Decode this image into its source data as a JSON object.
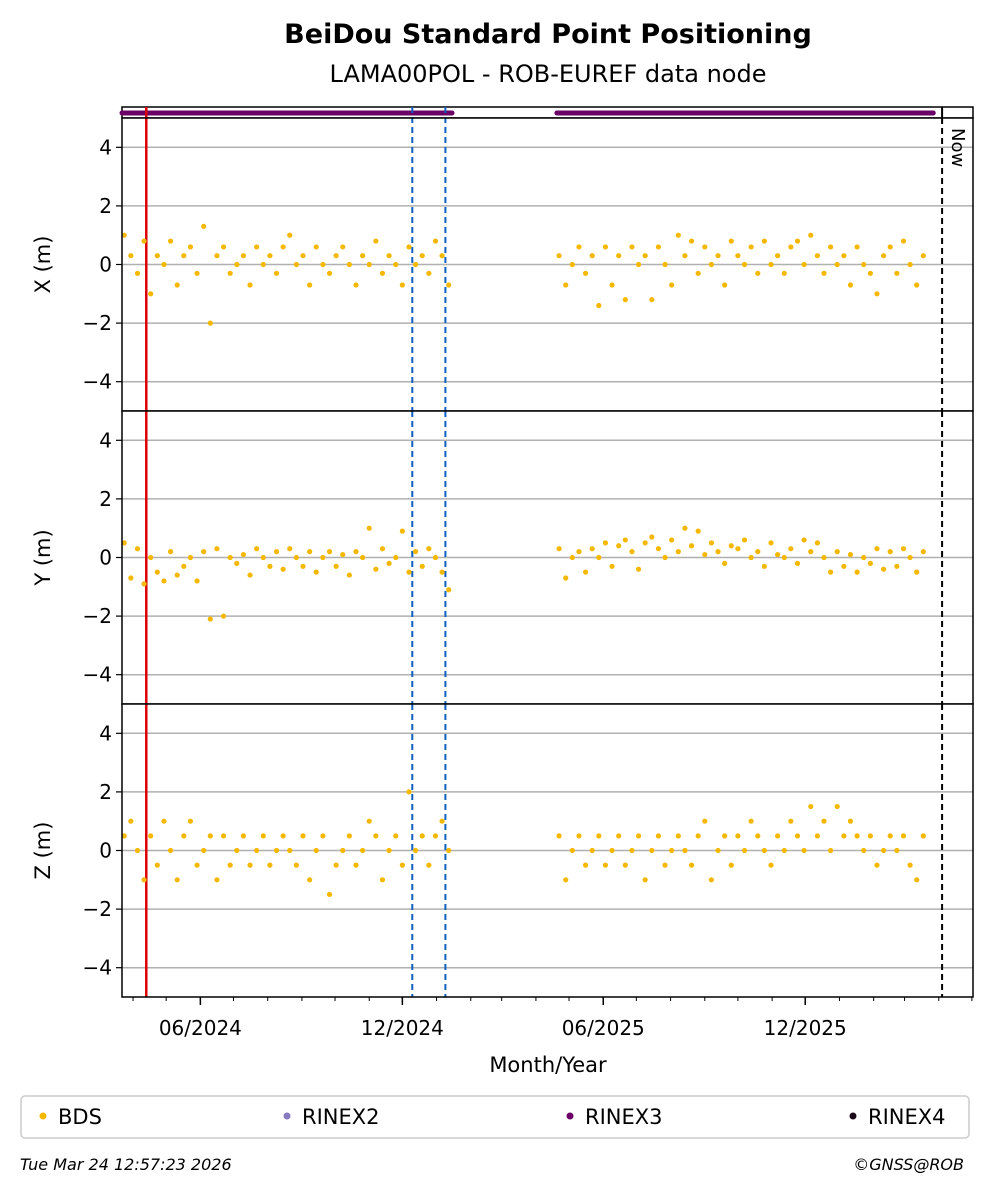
{
  "chart_data": {
    "type": "scatter",
    "title": "BeiDou Standard Point Positioning",
    "subtitle": "LAMA00POL - ROB-EUREF data node",
    "xlabel": "Month/Year",
    "x_units": "days since 2024-03-22",
    "xlim": [
      0,
      771
    ],
    "x_ticks": [
      {
        "day": 71,
        "label": "06/2024"
      },
      {
        "day": 254,
        "label": "12/2024"
      },
      {
        "day": 436,
        "label": "06/2025"
      },
      {
        "day": 619,
        "label": "12/2025"
      }
    ],
    "ylim": [
      -5,
      5
    ],
    "y_ticks": [
      4,
      2,
      0,
      -2,
      -4
    ],
    "y_tick_labels": [
      "4",
      "2",
      "0",
      "−2",
      "−4"
    ],
    "grid": "horizontal",
    "panels": [
      {
        "ylabel": "X (m)",
        "segments": [
          {
            "start_day": 2,
            "step_days": 6,
            "values": [
              1,
              0.3,
              -0.3,
              0.8,
              -1,
              0.3,
              0,
              0.8,
              -0.7,
              0.3,
              0.6,
              -0.3,
              1.3,
              -2,
              0.3,
              0.6,
              -0.3,
              0,
              0.3,
              -0.7,
              0.6,
              0,
              0.3,
              -0.3,
              0.6,
              1,
              0,
              0.3,
              -0.7,
              0.6,
              0,
              -0.3,
              0.3,
              0.6,
              0,
              -0.7,
              0.3,
              0,
              0.8,
              -0.3,
              0.3,
              0,
              -0.7,
              0.6,
              0,
              0.3,
              -0.3,
              0.8,
              0.3,
              -0.7
            ]
          },
          {
            "start_day": 396,
            "step_days": 6,
            "values": [
              0.3,
              -0.7,
              0,
              0.6,
              -0.3,
              0.3,
              -1.4,
              0.6,
              -0.7,
              0.3,
              -1.2,
              0.6,
              0,
              0.3,
              -1.2,
              0.6,
              0,
              -0.7,
              1,
              0.3,
              0.8,
              -0.3,
              0.6,
              0,
              0.3,
              -0.7,
              0.8,
              0.3,
              0,
              0.6,
              -0.3,
              0.8,
              0,
              0.3,
              -0.3,
              0.6,
              0.8,
              0,
              1,
              0.3,
              -0.3,
              0.6,
              0,
              0.3,
              -0.7,
              0.6,
              0,
              -0.3,
              -1,
              0.3,
              0.6,
              -0.3,
              0.8,
              0,
              -0.7,
              0.3
            ]
          }
        ]
      },
      {
        "ylabel": "Y (m)",
        "segments": [
          {
            "start_day": 2,
            "step_days": 6,
            "values": [
              0.5,
              -0.7,
              0.3,
              -0.9,
              0,
              -0.5,
              -0.8,
              0.2,
              -0.6,
              -0.3,
              0,
              -0.8,
              0.2,
              -2.1,
              0.3,
              -2.0,
              0,
              -0.2,
              0.1,
              -0.6,
              0.3,
              0,
              -0.3,
              0.2,
              -0.4,
              0.3,
              0,
              -0.3,
              0.2,
              -0.5,
              0,
              0.2,
              -0.3,
              0.1,
              -0.6,
              0.2,
              0,
              1,
              -0.4,
              0.3,
              -0.2,
              0,
              0.9,
              -0.5,
              0.2,
              -0.3,
              0.3,
              0,
              -0.5,
              -1.1
            ]
          },
          {
            "start_day": 396,
            "step_days": 6,
            "values": [
              0.3,
              -0.7,
              0,
              0.2,
              -0.5,
              0.3,
              0,
              0.5,
              -0.3,
              0.4,
              0.6,
              0.2,
              -0.4,
              0.5,
              0.7,
              0.3,
              0,
              0.6,
              0.2,
              1,
              0.4,
              0.9,
              0.1,
              0.5,
              0.2,
              -0.2,
              0.4,
              0.3,
              0.6,
              0,
              0.2,
              -0.3,
              0.5,
              0.1,
              0,
              0.3,
              -0.2,
              0.6,
              0.2,
              0.5,
              0,
              -0.5,
              0.2,
              -0.3,
              0.1,
              -0.5,
              0,
              -0.2,
              0.3,
              -0.4,
              0.2,
              -0.3,
              0.3,
              0,
              -0.5,
              0.2
            ]
          }
        ]
      },
      {
        "ylabel": "Z (m)",
        "segments": [
          {
            "start_day": 2,
            "step_days": 6,
            "values": [
              0.5,
              1,
              0,
              -1,
              0.5,
              -0.5,
              1,
              0,
              -1,
              0.5,
              1,
              -0.5,
              0,
              0.5,
              -1,
              0.5,
              -0.5,
              0,
              0.5,
              -0.5,
              0,
              0.5,
              -0.5,
              0,
              0.5,
              0,
              -0.5,
              0.5,
              -1,
              0,
              0.5,
              -1.5,
              -0.5,
              0,
              0.5,
              -0.5,
              0,
              1,
              0.5,
              -1,
              0,
              0.5,
              -0.5,
              2,
              0,
              0.5,
              -0.5,
              0.5,
              1,
              0
            ]
          },
          {
            "start_day": 396,
            "step_days": 6,
            "values": [
              0.5,
              -1,
              0,
              0.5,
              -0.5,
              0,
              0.5,
              -0.5,
              0,
              0.5,
              -0.5,
              0,
              0.5,
              -1,
              0,
              0.5,
              -0.5,
              0,
              0.5,
              0,
              -0.5,
              0.5,
              1,
              -1,
              0,
              0.5,
              -0.5,
              0.5,
              0,
              1,
              0.5,
              0,
              -0.5,
              0.5,
              0,
              1,
              0.5,
              0,
              1.5,
              0.5,
              1,
              0,
              1.5,
              0.5,
              1,
              0.5,
              0,
              0.5,
              -0.5,
              0,
              0.5,
              0,
              0.5,
              -0.5,
              -1,
              0.5
            ]
          }
        ]
      }
    ],
    "availability_strip": {
      "series": "RINEX3",
      "ranges": [
        [
          0,
          299
        ],
        [
          394,
          735
        ]
      ]
    },
    "vertical_markers": {
      "red_line_day": 22,
      "blue_dashed_days": [
        263,
        293
      ],
      "now_day": 743,
      "now_label": "Now"
    },
    "legend": {
      "placement": "bottom",
      "entries": [
        {
          "label": "BDS",
          "color": "#f5b800"
        },
        {
          "label": "RINEX2",
          "color": "#8878c0"
        },
        {
          "label": "RINEX3",
          "color": "#6b0066"
        },
        {
          "label": "RINEX4",
          "color": "#1a0a1a"
        }
      ]
    }
  },
  "footer": {
    "timestamp": "Tue Mar 24 12:57:23 2026",
    "copyright": "©GNSS@ROB"
  }
}
